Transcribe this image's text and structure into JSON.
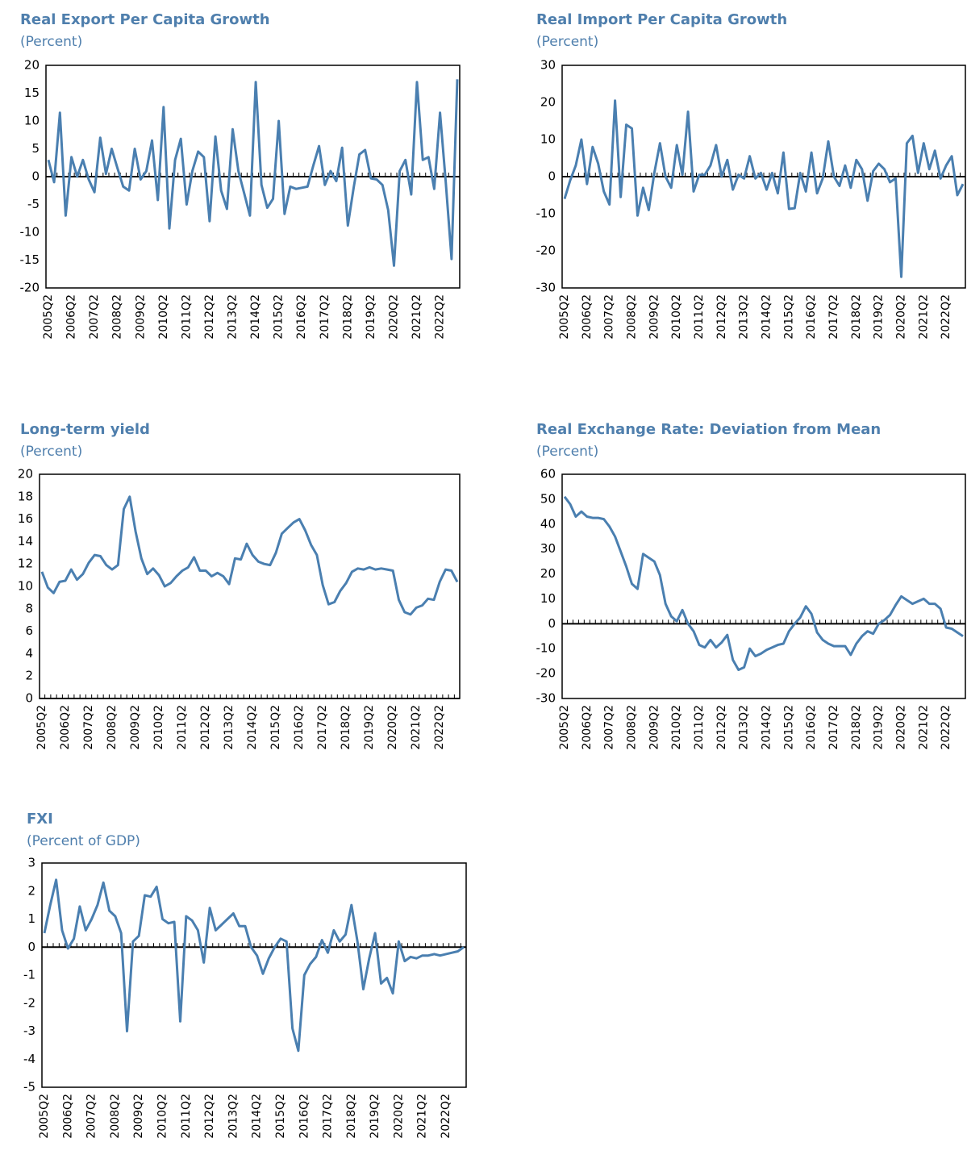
{
  "chart_data": [
    {
      "type": "line",
      "title": "Real Export Per Capita Growth",
      "subtitle": "(Percent)",
      "color": "#4a7fb0",
      "categories": [
        "2005Q2",
        null,
        null,
        null,
        "2006Q2",
        null,
        null,
        null,
        "2007Q2",
        null,
        null,
        null,
        "2008Q2",
        null,
        null,
        null,
        "2009Q2",
        null,
        null,
        null,
        "2010Q2",
        null,
        null,
        null,
        "2011Q2",
        null,
        null,
        null,
        "2012Q2",
        null,
        null,
        null,
        "2013Q2",
        null,
        null,
        null,
        "2014Q2",
        null,
        null,
        null,
        "2015Q2",
        null,
        null,
        null,
        "2016Q2",
        null,
        null,
        null,
        "2017Q2",
        null,
        null,
        null,
        "2018Q2",
        null,
        null,
        null,
        "2019Q2",
        null,
        null,
        null,
        "2020Q2",
        null,
        null,
        null,
        "2021Q2",
        null,
        null,
        null,
        "2022Q2",
        null,
        null,
        null
      ],
      "values": [
        3,
        -1,
        11.5,
        -7,
        3.5,
        0,
        3,
        -0.5,
        -2.8,
        7,
        0.5,
        5,
        1.5,
        -1.8,
        -2.5,
        5,
        -0.5,
        1,
        6.5,
        -4.2,
        12.5,
        -9.3,
        3,
        6.8,
        -5,
        1,
        4.5,
        3.5,
        -8,
        7.2,
        -2.5,
        -5.8,
        8.5,
        1,
        -3,
        -7,
        17,
        -1.5,
        -5.6,
        -4,
        10,
        -6.7,
        -1.8,
        -2.2,
        -2,
        -1.8,
        2,
        5.5,
        -1.5,
        1,
        -0.8,
        5.2,
        -8.8,
        -2,
        4,
        4.8,
        -0.3,
        -0.5,
        -1.5,
        -6,
        -16,
        1,
        3,
        -3.2,
        17,
        3,
        3.5,
        -2.2,
        11.5,
        -1,
        -14.8,
        17.5
      ],
      "ylim": [
        -20,
        20
      ],
      "yticks": [
        -20,
        -15,
        -10,
        -5,
        0,
        5,
        10,
        15,
        20
      ]
    },
    {
      "type": "line",
      "title": "Real Import Per Capita Growth",
      "subtitle": "(Percent)",
      "color": "#4a7fb0",
      "categories": [
        "2005Q2",
        null,
        null,
        null,
        "2006Q2",
        null,
        null,
        null,
        "2007Q2",
        null,
        null,
        null,
        "2008Q2",
        null,
        null,
        null,
        "2009Q2",
        null,
        null,
        null,
        "2010Q2",
        null,
        null,
        null,
        "2011Q2",
        null,
        null,
        null,
        "2012Q2",
        null,
        null,
        null,
        "2013Q2",
        null,
        null,
        null,
        "2014Q2",
        null,
        null,
        null,
        "2015Q2",
        null,
        null,
        null,
        "2016Q2",
        null,
        null,
        null,
        "2017Q2",
        null,
        null,
        null,
        "2018Q2",
        null,
        null,
        null,
        "2019Q2",
        null,
        null,
        null,
        "2020Q2",
        null,
        null,
        null,
        "2021Q2",
        null,
        null,
        null,
        "2022Q2",
        null,
        null,
        null
      ],
      "values": [
        -6,
        -1,
        3,
        10,
        -2,
        8,
        3.5,
        -4,
        -7.5,
        20.5,
        -5.5,
        14,
        13,
        -10.5,
        -3,
        -9,
        1,
        9,
        0,
        -3,
        8.5,
        0.5,
        17.5,
        -4,
        0.5,
        0.5,
        3,
        8.5,
        0,
        4.5,
        -3.5,
        0.5,
        -0.5,
        5.5,
        -0.5,
        1,
        -3.5,
        1,
        -4.5,
        6.5,
        -8.7,
        -8.5,
        1,
        -4,
        6.5,
        -4.5,
        -0.5,
        9.5,
        0,
        -2.5,
        3,
        -3,
        4.5,
        2,
        -6.5,
        1.5,
        3.5,
        2,
        -1.5,
        -0.5,
        -27,
        9,
        11,
        1,
        9,
        2,
        7,
        -0.5,
        3,
        5.5,
        -5,
        -2
      ],
      "ylim": [
        -30,
        30
      ],
      "yticks": [
        -30,
        -20,
        -10,
        0,
        10,
        20,
        30
      ]
    },
    {
      "type": "line",
      "title": "Long-term yield",
      "subtitle": "(Percent)",
      "color": "#4a7fb0",
      "categories": [
        "2005Q2",
        null,
        null,
        null,
        "2006Q2",
        null,
        null,
        null,
        "2007Q2",
        null,
        null,
        null,
        "2008Q2",
        null,
        null,
        null,
        "2009Q2",
        null,
        null,
        null,
        "2010Q2",
        null,
        null,
        null,
        "2011Q2",
        null,
        null,
        null,
        "2012Q2",
        null,
        null,
        null,
        "2013Q2",
        null,
        null,
        null,
        "2014Q2",
        null,
        null,
        null,
        "2015Q2",
        null,
        null,
        null,
        "2016Q2",
        null,
        null,
        null,
        "2017Q2",
        null,
        null,
        null,
        "2018Q2",
        null,
        null,
        null,
        "2019Q2",
        null,
        null,
        null,
        "2020Q2",
        null,
        null,
        null,
        "2021Q2",
        null,
        null,
        null,
        "2022Q2",
        null,
        null,
        null
      ],
      "values": [
        11.3,
        9.9,
        9.4,
        10.4,
        10.5,
        11.5,
        10.6,
        11.1,
        12.1,
        12.8,
        12.7,
        11.9,
        11.5,
        11.9,
        16.9,
        18.0,
        14.9,
        12.5,
        11.1,
        11.6,
        11.0,
        10.0,
        10.3,
        10.9,
        11.4,
        11.7,
        12.6,
        11.4,
        11.4,
        10.9,
        11.2,
        10.9,
        10.2,
        12.5,
        12.4,
        13.8,
        12.8,
        12.2,
        12.0,
        11.9,
        13.0,
        14.7,
        15.2,
        15.7,
        16.0,
        15.0,
        13.7,
        12.8,
        10.1,
        8.4,
        8.6,
        9.6,
        10.3,
        11.3,
        11.6,
        11.5,
        11.7,
        11.5,
        11.6,
        11.5,
        11.4,
        8.8,
        7.7,
        7.5,
        8.1,
        8.3,
        8.9,
        8.8,
        10.4,
        11.5,
        11.4,
        10.4
      ],
      "ylim": [
        0,
        20
      ],
      "yticks": [
        0,
        2,
        4,
        6,
        8,
        10,
        12,
        14,
        16,
        18,
        20
      ]
    },
    {
      "type": "line",
      "title": "Real Exchange Rate: Deviation from Mean",
      "subtitle": "(Percent)",
      "color": "#4a7fb0",
      "categories": [
        "2005Q2",
        null,
        null,
        null,
        "2006Q2",
        null,
        null,
        null,
        "2007Q2",
        null,
        null,
        null,
        "2008Q2",
        null,
        null,
        null,
        "2009Q2",
        null,
        null,
        null,
        "2010Q2",
        null,
        null,
        null,
        "2011Q2",
        null,
        null,
        null,
        "2012Q2",
        null,
        null,
        null,
        "2013Q2",
        null,
        null,
        null,
        "2014Q2",
        null,
        null,
        null,
        "2015Q2",
        null,
        null,
        null,
        "2016Q2",
        null,
        null,
        null,
        "2017Q2",
        null,
        null,
        null,
        "2018Q2",
        null,
        null,
        null,
        "2019Q2",
        null,
        null,
        null,
        "2020Q2",
        null,
        null,
        null,
        "2021Q2",
        null,
        null,
        null,
        "2022Q2",
        null,
        null,
        null
      ],
      "values": [
        51,
        48,
        43,
        45,
        43,
        42.5,
        42.5,
        42,
        39,
        35,
        29,
        23,
        16,
        14,
        28,
        26.5,
        25,
        19.5,
        8,
        3,
        1,
        5.5,
        0,
        -3,
        -8.5,
        -9.5,
        -6.5,
        -9.5,
        -7.5,
        -4.5,
        -14.5,
        -18.5,
        -17.5,
        -10,
        -13,
        -12,
        -10.5,
        -9.5,
        -8.5,
        -8,
        -3,
        0,
        2.5,
        7,
        4,
        -3.5,
        -6.5,
        -8,
        -9,
        -9,
        -9,
        -12.5,
        -8,
        -5,
        -3,
        -4,
        0,
        1.5,
        3.5,
        7.5,
        11,
        9.5,
        8,
        9,
        10,
        8,
        8,
        6,
        -1.5,
        -2,
        -3.5,
        -5
      ],
      "ylim": [
        -30,
        60
      ],
      "yticks": [
        -30,
        -20,
        -10,
        0,
        10,
        20,
        30,
        40,
        50,
        60
      ]
    },
    {
      "type": "line",
      "title": "FXI",
      "subtitle": "(Percent of GDP)",
      "color": "#4a7fb0",
      "categories": [
        "2005Q2",
        null,
        null,
        null,
        "2006Q2",
        null,
        null,
        null,
        "2007Q2",
        null,
        null,
        null,
        "2008Q2",
        null,
        null,
        null,
        "2009Q2",
        null,
        null,
        null,
        "2010Q2",
        null,
        null,
        null,
        "2011Q2",
        null,
        null,
        null,
        "2012Q2",
        null,
        null,
        null,
        "2013Q2",
        null,
        null,
        null,
        "2014Q2",
        null,
        null,
        null,
        "2015Q2",
        null,
        null,
        null,
        "2016Q2",
        null,
        null,
        null,
        "2017Q2",
        null,
        null,
        null,
        "2018Q2",
        null,
        null,
        null,
        "2019Q2",
        null,
        null,
        null,
        "2020Q2",
        null,
        null,
        null,
        "2021Q2",
        null,
        null,
        null,
        "2022Q2",
        null,
        null,
        null
      ],
      "values": [
        0.5,
        1.5,
        2.4,
        0.6,
        -0.05,
        0.3,
        1.45,
        0.6,
        1.0,
        1.5,
        2.3,
        1.3,
        1.1,
        0.5,
        -3.0,
        0.2,
        0.4,
        1.85,
        1.8,
        2.15,
        1.0,
        0.85,
        0.9,
        -2.65,
        1.1,
        0.95,
        0.6,
        -0.55,
        1.4,
        0.6,
        0.8,
        1.0,
        1.2,
        0.75,
        0.75,
        0.0,
        -0.3,
        -0.95,
        -0.4,
        0.0,
        0.3,
        0.2,
        -2.9,
        -3.7,
        -1.0,
        -0.6,
        -0.35,
        0.25,
        -0.2,
        0.6,
        0.2,
        0.45,
        1.5,
        0.2,
        -1.5,
        -0.4,
        0.5,
        -1.3,
        -1.1,
        -1.65,
        0.2,
        -0.5,
        -0.35,
        -0.4,
        -0.3,
        -0.3,
        -0.25,
        -0.3,
        -0.25,
        -0.2,
        -0.15,
        0.0
      ],
      "ylim": [
        -5,
        3
      ],
      "yticks": [
        -5,
        -4,
        -3,
        -2,
        -1,
        0,
        1,
        2,
        3
      ]
    }
  ]
}
